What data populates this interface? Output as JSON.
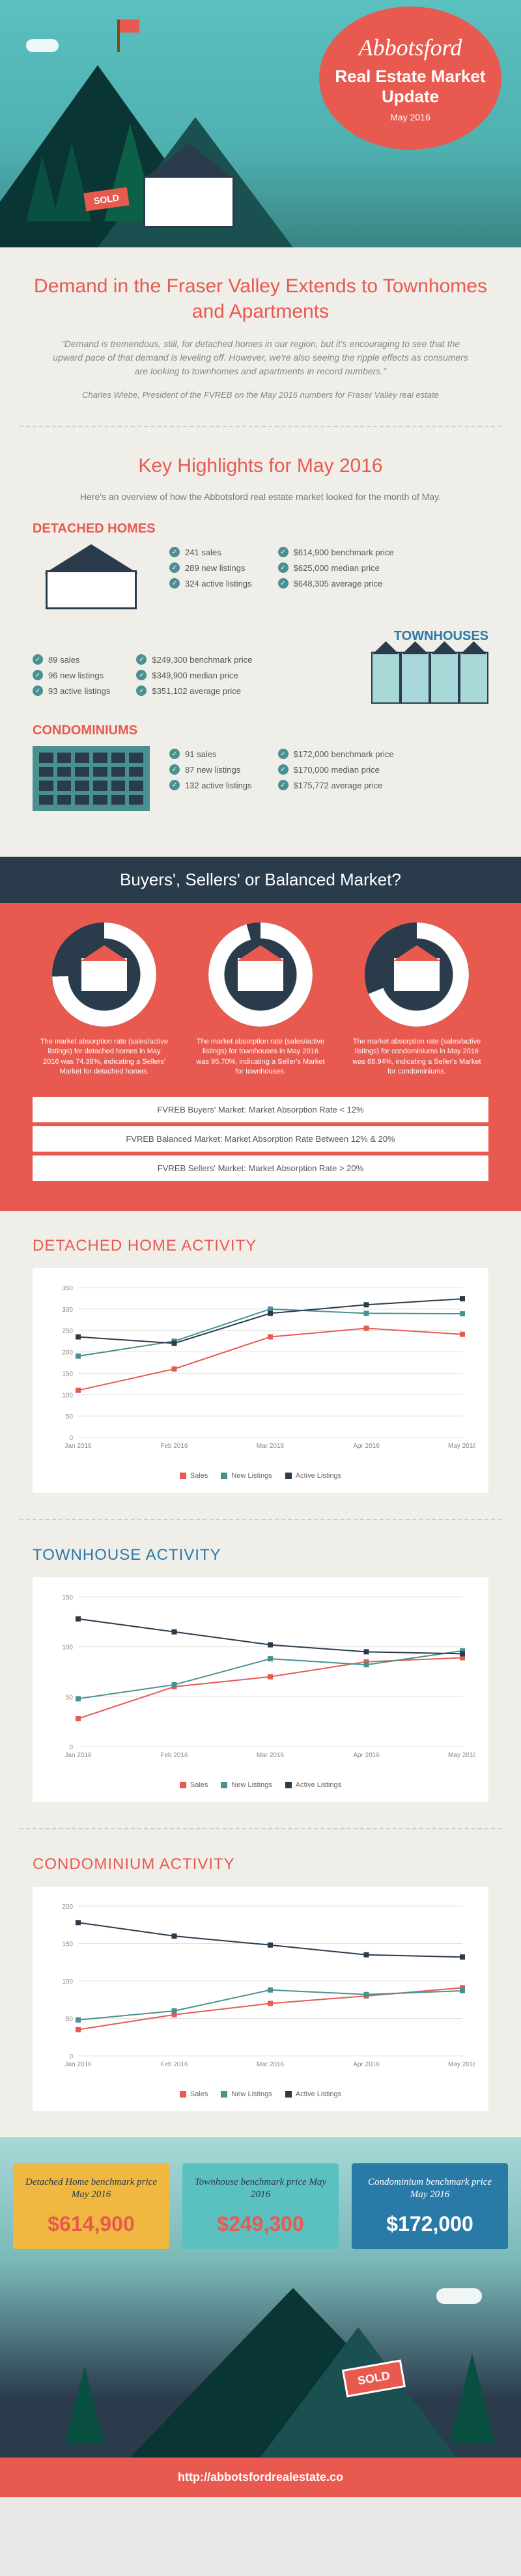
{
  "header": {
    "location": "Abbotsford",
    "title": "Real Estate Market Update",
    "date": "May 2016",
    "sold_label": "SOLD"
  },
  "intro": {
    "headline": "Demand in the Fraser Valley Extends to Townhomes and Apartments",
    "quote": "\"Demand is tremendous, still, for detached homes in our region, but it's encouraging to see that the upward pace of that demand is leveling off. However, we're also seeing the ripple effects as consumers are looking to townhomes and apartments in record numbers.\"",
    "attribution": "Charles Wiebe, President of the FVREB on the May 2016 numbers for Fraser Valley real estate"
  },
  "highlights": {
    "title": "Key Highlights for May 2016",
    "subtitle": "Here's an overview of how the Abbotsford real estate market looked for the month of May.",
    "detached": {
      "label": "DETACHED HOMES",
      "left": [
        "241 sales",
        "289 new listings",
        "324 active listings"
      ],
      "right": [
        "$614,900 benchmark price",
        "$625,000 median price",
        "$648,305 average price"
      ]
    },
    "townhouse": {
      "label": "TOWNHOUSES",
      "left": [
        "89 sales",
        "96 new listings",
        "93 active listings"
      ],
      "right": [
        "$249,300 benchmark price",
        "$349,900 median price",
        "$351,102 average price"
      ]
    },
    "condo": {
      "label": "CONDOMINIUMS",
      "left": [
        "91 sales",
        "87 new listings",
        "132 active listings"
      ],
      "right": [
        "$172,000 benchmark price",
        "$170,000 median price",
        "$175,772 average price"
      ]
    }
  },
  "market": {
    "title": "Buyers', Sellers' or Balanced Market?",
    "donuts": [
      {
        "pct": 74.38,
        "caption": "The market absorption rate (sales/active listings) for detached homes in May 2016 was 74.38%, indicating a Sellers' Market for detached homes."
      },
      {
        "pct": 95.7,
        "caption": "The market absorption rate (sales/active listings) for townhouses in May 2016 was 95.70%, indicating a Seller's Market for townhouses."
      },
      {
        "pct": 68.94,
        "caption": "The market absorption rate (sales/active listings) for condominiums in May 2016 was 68.94%, indicating a Seller's Market for condominiums."
      }
    ],
    "rates": [
      "FVREB Buyers' Market: Market Absorption Rate < 12%",
      "FVREB Balanced Market: Market Absorption Rate Between 12% & 20%",
      "FVREB Sellers' Market: Market Absorption Rate > 20%"
    ]
  },
  "charts": {
    "months": [
      "Jan 2016",
      "Feb 2016",
      "Mar 2016",
      "Apr 2016",
      "May 2016"
    ],
    "series_labels": [
      "Sales",
      "New Listings",
      "Active Listings"
    ],
    "series_colors": [
      "#e85a4f",
      "#4a9090",
      "#2a3b4c"
    ],
    "grid_color": "#e0e0e0",
    "axis_color": "#888",
    "label_fontsize": 10,
    "detached": {
      "title": "DETACHED HOME ACTIVITY",
      "title_color": "#e85a4f",
      "ylim": [
        0,
        350
      ],
      "ytick_step": 50,
      "sales": [
        110,
        160,
        235,
        255,
        241
      ],
      "new_listings": [
        190,
        225,
        300,
        290,
        289
      ],
      "active_listings": [
        235,
        220,
        290,
        310,
        324
      ]
    },
    "townhouse": {
      "title": "TOWNHOUSE ACTIVITY",
      "title_color": "#2a7aa8",
      "ylim": [
        0,
        150
      ],
      "ytick_step": 50,
      "sales": [
        28,
        60,
        70,
        85,
        89
      ],
      "new_listings": [
        48,
        62,
        88,
        82,
        96
      ],
      "active_listings": [
        128,
        115,
        102,
        95,
        93
      ]
    },
    "condo": {
      "title": "CONDOMINIUM ACTIVITY",
      "title_color": "#e85a4f",
      "ylim": [
        0,
        200
      ],
      "ytick_step": 50,
      "sales": [
        35,
        55,
        70,
        80,
        91
      ],
      "new_listings": [
        48,
        60,
        88,
        82,
        87
      ],
      "active_listings": [
        178,
        160,
        148,
        135,
        132
      ]
    }
  },
  "benchmarks": {
    "cards": [
      {
        "label": "Detached Home benchmark price May 2016",
        "price": "$614,900",
        "bg": "#f0b840"
      },
      {
        "label": "Townhouse benchmark price May 2016",
        "price": "$249,300",
        "bg": "#5bc0c0"
      },
      {
        "label": "Condominium benchmark price May 2016",
        "price": "$172,000",
        "bg": "#2a7aa8"
      }
    ]
  },
  "footer": {
    "sold_label": "SOLD",
    "url": "http://abbotsfordrealestate.co"
  }
}
